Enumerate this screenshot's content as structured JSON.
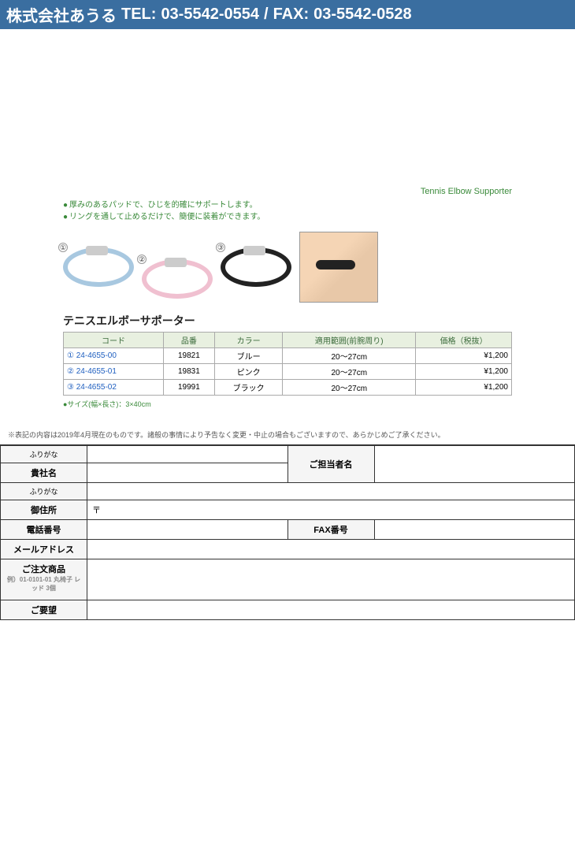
{
  "header": {
    "company": "株式会社あうる",
    "tel_label": "TEL:",
    "tel": "03-5542-0554",
    "separator": "/",
    "fax_label": "FAX:",
    "fax": "03-5542-0528",
    "bar_bg": "#3a6ea0",
    "text_color": "#ffffff"
  },
  "product": {
    "english_caption": "Tennis Elbow Supporter",
    "bullets": [
      "厚みのあるパッドで、ひじを的確にサポートします。",
      "リングを通して止めるだけで、簡便に装着ができます。"
    ],
    "title": "テニスエルボーサポーター",
    "size_note": "●サイズ(幅×長さ)：3×40cm",
    "colors": {
      "accent_green": "#3a8a3a",
      "header_bg": "#e8f0e0",
      "link_blue": "#2060c0"
    },
    "table": {
      "columns": [
        "コード",
        "品番",
        "カラー",
        "適用範囲(前腕周り)",
        "価格（税抜）"
      ],
      "rows": [
        {
          "marker": "①",
          "code": "24-4655-00",
          "item": "19821",
          "color": "ブルー",
          "range": "20～27cm",
          "price": "¥1,200"
        },
        {
          "marker": "②",
          "code": "24-4655-01",
          "item": "19831",
          "color": "ピンク",
          "range": "20～27cm",
          "price": "¥1,200"
        },
        {
          "marker": "③",
          "code": "24-4655-02",
          "item": "19991",
          "color": "ブラック",
          "range": "20～27cm",
          "price": "¥1,200"
        }
      ]
    }
  },
  "disclaimer": "※表記の内容は2019年4月現在のものです。諸般の事情により予告なく変更・中止の場合もございますので、あらかじめご了承ください。",
  "form": {
    "furigana": "ふりがな",
    "company_name": "貴社名",
    "contact_name": "ご担当者名",
    "address": "御住所",
    "tel": "電話番号",
    "fax": "FAX番号",
    "email": "メールアドレス",
    "order": "ご注文商品",
    "order_example": "例）01-0101-01 丸椅子 レッド 3個",
    "request": "ご要望"
  }
}
